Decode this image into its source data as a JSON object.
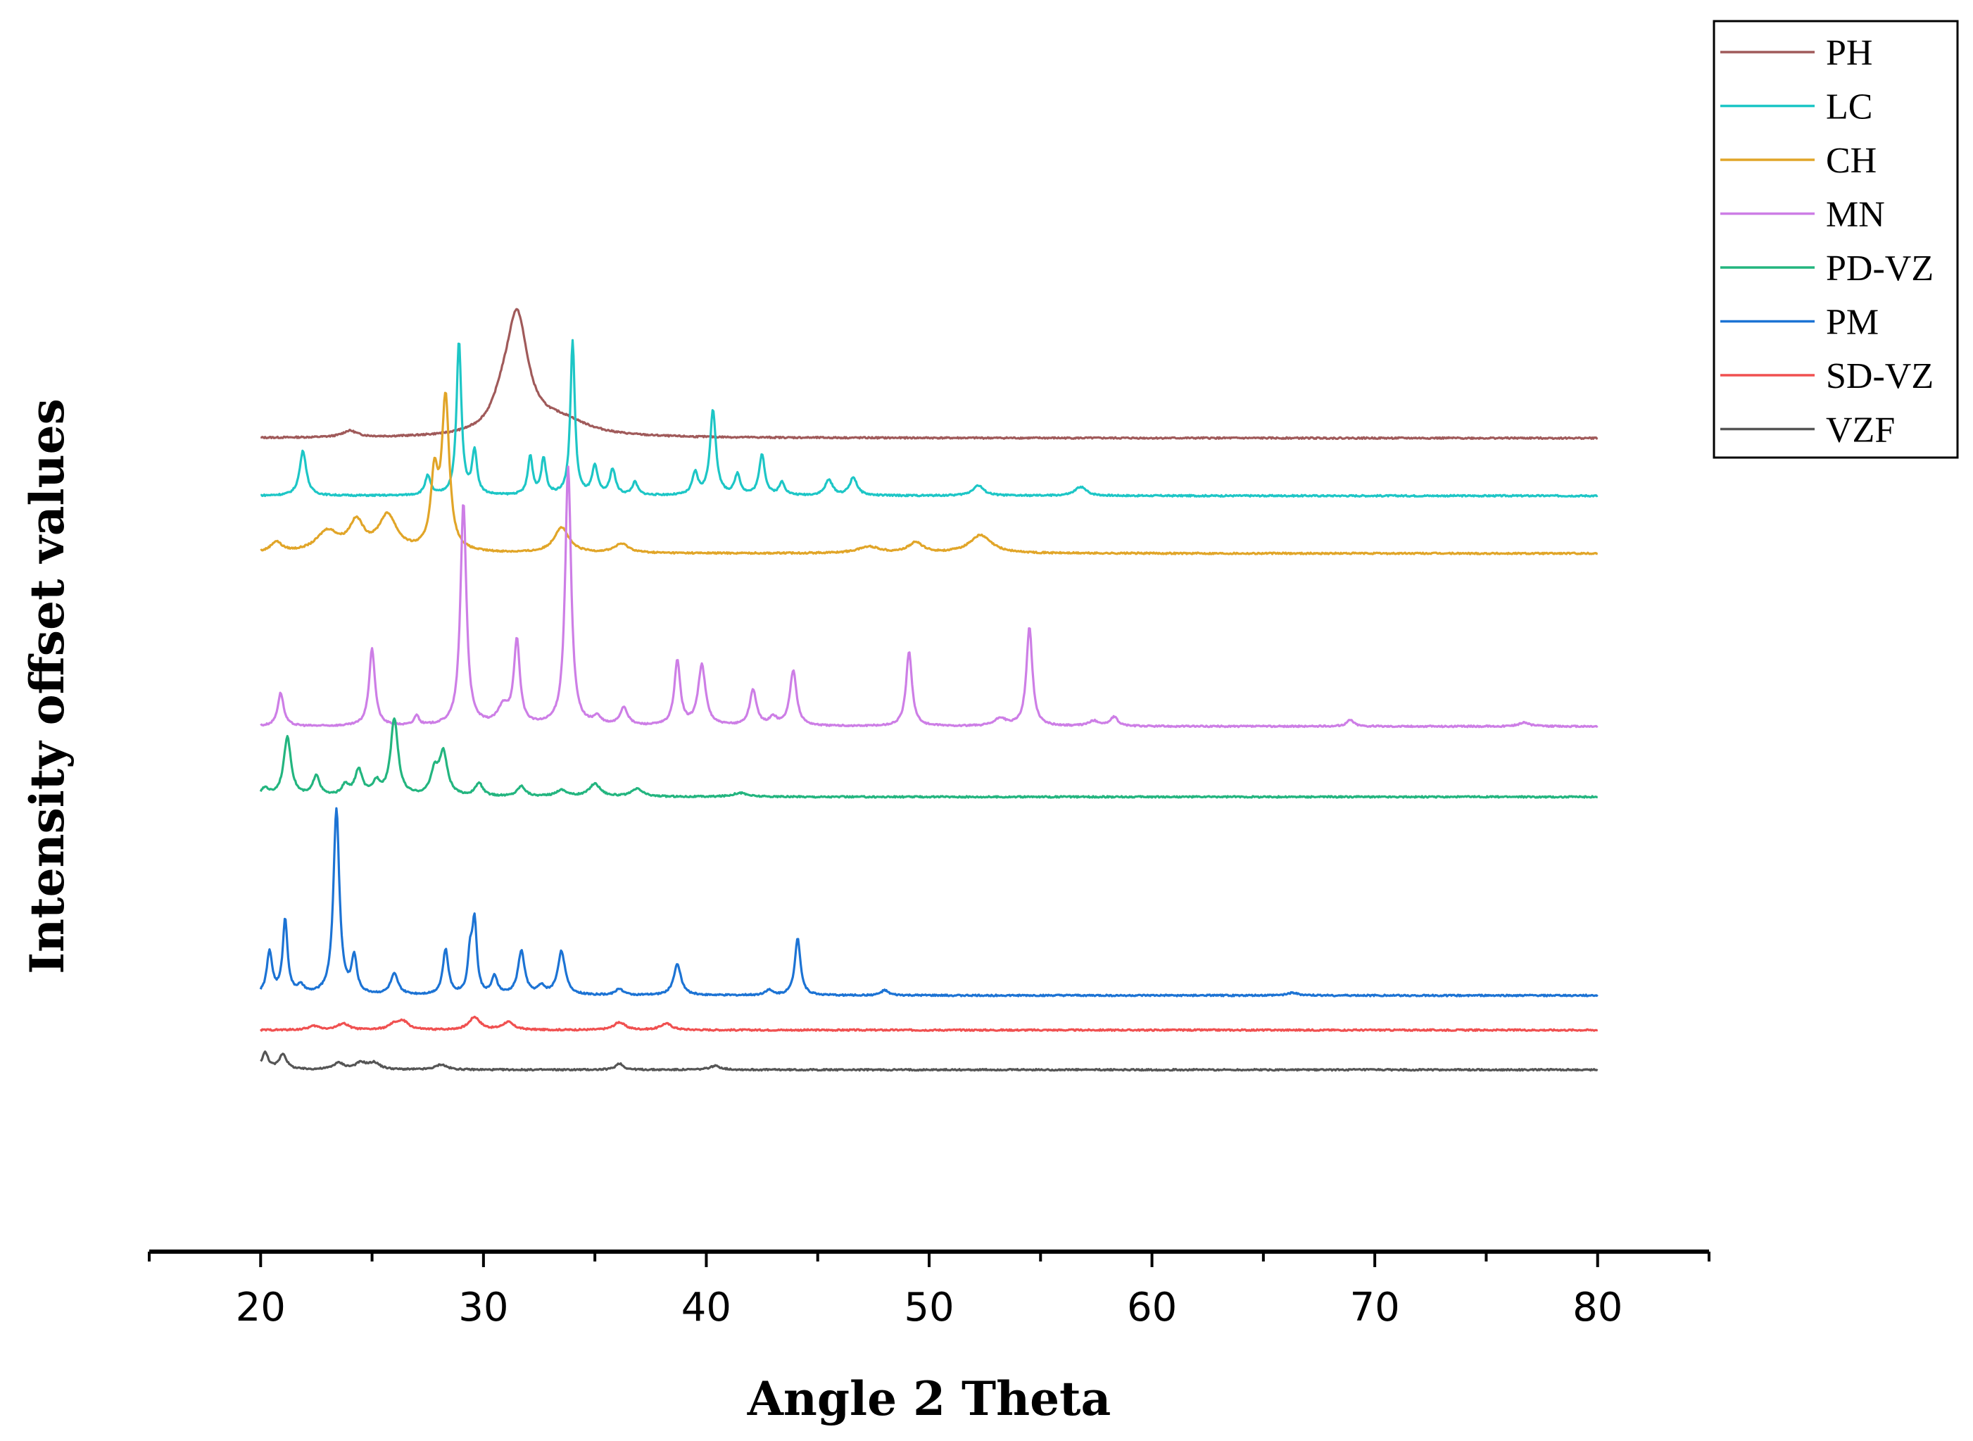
{
  "chart_data": {
    "type": "line",
    "title": "",
    "xlabel": "Angle 2 Theta",
    "ylabel": "Intensity offset values",
    "xlim": [
      15,
      85
    ],
    "xticks": [
      20,
      30,
      40,
      50,
      60,
      70,
      80
    ],
    "grid": false,
    "legend_position": "top-right",
    "series": [
      {
        "name": "PH",
        "color": "#a05a5a",
        "baseline": 2.8,
        "peaks": [
          [
            24,
            0.05,
            0.4
          ],
          [
            30.8,
            0.12,
            0.5
          ],
          [
            31.5,
            0.92,
            0.6
          ],
          [
            33.5,
            0.12,
            1.5
          ]
        ]
      },
      {
        "name": "LC",
        "color": "#1dc6c6",
        "baseline": 2.35,
        "peaks": [
          [
            21.9,
            0.35,
            0.18
          ],
          [
            27.5,
            0.15,
            0.15
          ],
          [
            28.9,
            1.2,
            0.13
          ],
          [
            29.6,
            0.34,
            0.13
          ],
          [
            32.1,
            0.3,
            0.13
          ],
          [
            32.7,
            0.28,
            0.13
          ],
          [
            34.0,
            1.2,
            0.12
          ],
          [
            35.0,
            0.22,
            0.15
          ],
          [
            35.8,
            0.2,
            0.15
          ],
          [
            36.8,
            0.1,
            0.15
          ],
          [
            39.5,
            0.17,
            0.15
          ],
          [
            40.3,
            0.66,
            0.16
          ],
          [
            41.4,
            0.16,
            0.15
          ],
          [
            42.5,
            0.32,
            0.15
          ],
          [
            43.4,
            0.1,
            0.15
          ],
          [
            45.5,
            0.12,
            0.2
          ],
          [
            46.6,
            0.14,
            0.2
          ],
          [
            52.2,
            0.08,
            0.3
          ],
          [
            56.8,
            0.07,
            0.3
          ]
        ]
      },
      {
        "name": "CH",
        "color": "#e1a528",
        "baseline": 1.9,
        "peaks": [
          [
            20.7,
            0.08,
            0.3
          ],
          [
            23.0,
            0.16,
            0.6
          ],
          [
            24.3,
            0.22,
            0.4
          ],
          [
            25.7,
            0.28,
            0.5
          ],
          [
            27.8,
            0.56,
            0.2
          ],
          [
            28.3,
            1.17,
            0.2
          ],
          [
            33.5,
            0.2,
            0.4
          ],
          [
            36.2,
            0.07,
            0.4
          ],
          [
            47.3,
            0.05,
            0.6
          ],
          [
            49.4,
            0.08,
            0.4
          ],
          [
            52.3,
            0.14,
            0.6
          ]
        ]
      },
      {
        "name": "MN",
        "color": "#cd7ee6",
        "baseline": 0.55,
        "peaks": [
          [
            20.9,
            0.26,
            0.16
          ],
          [
            25.0,
            0.6,
            0.16
          ],
          [
            27.0,
            0.08,
            0.12
          ],
          [
            29.1,
            1.74,
            0.16
          ],
          [
            30.9,
            0.14,
            0.3
          ],
          [
            31.5,
            0.65,
            0.16
          ],
          [
            33.8,
            2.02,
            0.16
          ],
          [
            35.1,
            0.06,
            0.2
          ],
          [
            36.3,
            0.14,
            0.2
          ],
          [
            38.7,
            0.5,
            0.16
          ],
          [
            39.8,
            0.47,
            0.2
          ],
          [
            42.1,
            0.28,
            0.18
          ],
          [
            43.0,
            0.06,
            0.2
          ],
          [
            43.9,
            0.43,
            0.18
          ],
          [
            49.1,
            0.58,
            0.16
          ],
          [
            53.2,
            0.06,
            0.3
          ],
          [
            54.5,
            0.77,
            0.16
          ],
          [
            57.4,
            0.04,
            0.3
          ],
          [
            58.3,
            0.07,
            0.2
          ],
          [
            68.9,
            0.05,
            0.2
          ],
          [
            76.7,
            0.03,
            0.3
          ]
        ]
      },
      {
        "name": "PD-VZ",
        "color": "#23b57f",
        "baseline": 0.0,
        "peaks": [
          [
            20.2,
            0.06,
            0.2
          ],
          [
            21.2,
            0.46,
            0.2
          ],
          [
            22.5,
            0.16,
            0.18
          ],
          [
            23.8,
            0.08,
            0.2
          ],
          [
            24.4,
            0.2,
            0.2
          ],
          [
            25.2,
            0.1,
            0.2
          ],
          [
            26.0,
            0.6,
            0.2
          ],
          [
            27.8,
            0.18,
            0.2
          ],
          [
            28.2,
            0.33,
            0.22
          ],
          [
            29.8,
            0.1,
            0.2
          ],
          [
            31.7,
            0.08,
            0.22
          ],
          [
            33.5,
            0.05,
            0.3
          ],
          [
            35.0,
            0.1,
            0.3
          ],
          [
            36.9,
            0.06,
            0.3
          ],
          [
            41.5,
            0.03,
            0.4
          ]
        ]
      },
      {
        "name": "PM",
        "color": "#1c73d4",
        "baseline": -1.55,
        "peaks": [
          [
            20.4,
            0.33,
            0.15
          ],
          [
            21.1,
            0.58,
            0.13
          ],
          [
            21.8,
            0.06,
            0.2
          ],
          [
            23.4,
            1.45,
            0.16
          ],
          [
            24.2,
            0.28,
            0.14
          ],
          [
            26.0,
            0.16,
            0.2
          ],
          [
            28.3,
            0.35,
            0.15
          ],
          [
            29.4,
            0.3,
            0.12
          ],
          [
            29.6,
            0.55,
            0.12
          ],
          [
            30.5,
            0.14,
            0.15
          ],
          [
            31.7,
            0.34,
            0.18
          ],
          [
            32.6,
            0.06,
            0.2
          ],
          [
            33.5,
            0.34,
            0.2
          ],
          [
            36.1,
            0.05,
            0.2
          ],
          [
            38.7,
            0.24,
            0.2
          ],
          [
            42.8,
            0.04,
            0.2
          ],
          [
            44.1,
            0.45,
            0.15
          ],
          [
            48.0,
            0.04,
            0.2
          ],
          [
            66.3,
            0.02,
            0.3
          ]
        ]
      },
      {
        "name": "SD-VZ",
        "color": "#f05050",
        "baseline": -1.82,
        "peaks": [
          [
            22.4,
            0.03,
            0.3
          ],
          [
            23.7,
            0.05,
            0.3
          ],
          [
            26.0,
            0.04,
            0.3
          ],
          [
            26.4,
            0.06,
            0.3
          ],
          [
            29.6,
            0.1,
            0.3
          ],
          [
            31.1,
            0.06,
            0.3
          ],
          [
            36.1,
            0.06,
            0.3
          ],
          [
            38.2,
            0.05,
            0.3
          ]
        ]
      },
      {
        "name": "VZF",
        "color": "#555555",
        "baseline": -2.13,
        "peaks": [
          [
            20.2,
            0.13,
            0.18
          ],
          [
            21.0,
            0.12,
            0.2
          ],
          [
            23.5,
            0.05,
            0.3
          ],
          [
            24.5,
            0.05,
            0.3
          ],
          [
            25.1,
            0.05,
            0.3
          ],
          [
            28.1,
            0.04,
            0.3
          ],
          [
            36.1,
            0.05,
            0.2
          ],
          [
            40.4,
            0.03,
            0.3
          ]
        ]
      }
    ]
  }
}
